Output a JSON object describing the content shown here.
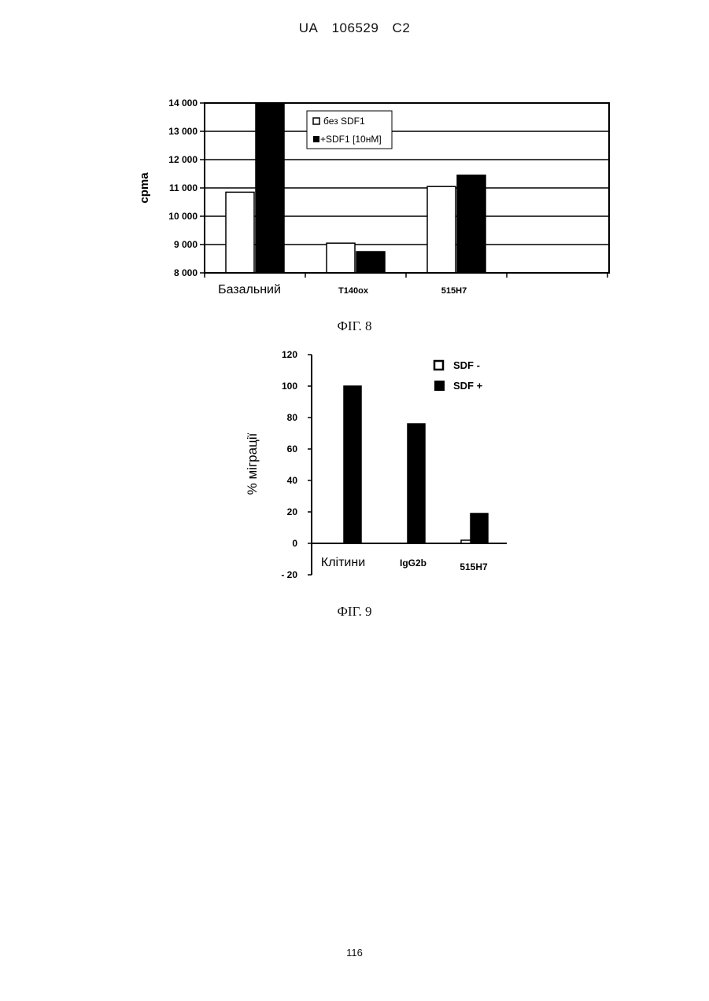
{
  "header": {
    "country": "UA",
    "number": "106529",
    "kind": "C2"
  },
  "figure8": {
    "caption": "ФІГ. 8"
  },
  "figure9": {
    "caption": "ФІГ. 9"
  },
  "page_number": "116",
  "chart_data": [
    {
      "type": "bar",
      "title": "",
      "xlabel": "",
      "ylabel": "cpma",
      "ylim": [
        8000,
        14000
      ],
      "yticks": [
        8000,
        9000,
        10000,
        11000,
        12000,
        13000,
        14000
      ],
      "ytick_labels": [
        "8 000",
        "9 000",
        "10 000",
        "11 000",
        "12 000",
        "13 000",
        "14 000"
      ],
      "categories": [
        "Базальний",
        "T140ox",
        "515H7"
      ],
      "series": [
        {
          "name": "без SDF1",
          "color": "#ffffff",
          "values": [
            10850,
            9050,
            11050
          ]
        },
        {
          "name": "+SDF1 [10нМ]",
          "color": "#000000",
          "values": [
            14000,
            8750,
            11450
          ]
        }
      ],
      "grid": true,
      "legend": "top-center"
    },
    {
      "type": "bar",
      "title": "",
      "xlabel": "",
      "ylabel": "% міграції",
      "ylim": [
        -20,
        120
      ],
      "yticks": [
        -20,
        0,
        20,
        40,
        60,
        80,
        100,
        120
      ],
      "ytick_labels": [
        "- 20",
        "0",
        "20",
        "40",
        "60",
        "80",
        "100",
        "120"
      ],
      "categories": [
        "Клітини",
        "IgG2b",
        "515H7"
      ],
      "series": [
        {
          "name": "SDF -",
          "color": "#ffffff",
          "values": [
            0,
            0,
            2
          ]
        },
        {
          "name": "SDF +",
          "color": "#000000",
          "values": [
            100,
            76,
            19
          ]
        }
      ],
      "grid": false,
      "legend": "top-right"
    }
  ]
}
